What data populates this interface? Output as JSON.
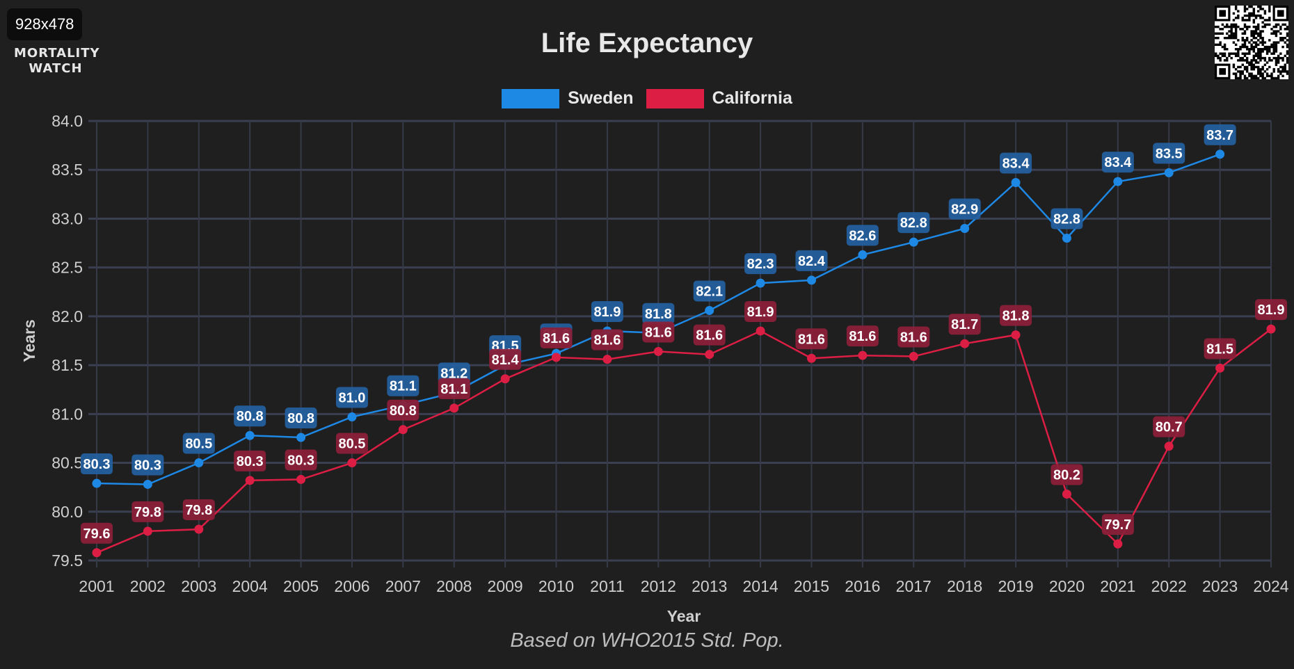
{
  "badge": "928x478",
  "logo": {
    "line1": "MORTALITY",
    "line2": "WATCH"
  },
  "chart_data": {
    "type": "line",
    "title": "Life Expectancy",
    "subtitle": "Based on WHO2015 Std. Pop.",
    "xlabel": "Year",
    "ylabel": "Years",
    "ylim": [
      79.5,
      84.0
    ],
    "yticks": [
      "84.0",
      "83.5",
      "83.0",
      "82.5",
      "82.0",
      "81.5",
      "81.0",
      "80.5",
      "80.0",
      "79.5"
    ],
    "ytick_values": [
      84.0,
      83.5,
      83.0,
      82.5,
      82.0,
      81.5,
      81.0,
      80.5,
      80.0,
      79.5
    ],
    "x": [
      "2001",
      "2002",
      "2003",
      "2004",
      "2005",
      "2006",
      "2007",
      "2008",
      "2009",
      "2010",
      "2011",
      "2012",
      "2013",
      "2014",
      "2015",
      "2016",
      "2017",
      "2018",
      "2019",
      "2020",
      "2021",
      "2022",
      "2023",
      "2024"
    ],
    "grid": true,
    "legend_position": "top-center",
    "series": [
      {
        "name": "Sweden",
        "color": "#1e88e5",
        "label_bg": "#245f9e",
        "values": [
          80.29,
          80.28,
          80.5,
          80.78,
          80.76,
          80.97,
          81.09,
          81.22,
          81.5,
          81.62,
          81.85,
          81.83,
          82.06,
          82.34,
          82.37,
          82.63,
          82.76,
          82.9,
          83.37,
          82.8,
          83.38,
          83.47,
          83.66,
          null
        ],
        "labels": [
          "80.3",
          "80.3",
          "80.5",
          "80.8",
          "80.8",
          "81.0",
          "81.1",
          "81.2",
          "81.5",
          "81.6",
          "81.9",
          "81.8",
          "82.1",
          "82.3",
          "82.4",
          "82.6",
          "82.8",
          "82.9",
          "83.4",
          "82.8",
          "83.4",
          "83.5",
          "83.7",
          ""
        ]
      },
      {
        "name": "California",
        "color": "#dc1e44",
        "label_bg": "#8b2039",
        "values": [
          79.58,
          79.8,
          79.82,
          80.32,
          80.33,
          80.5,
          80.84,
          81.06,
          81.36,
          81.58,
          81.56,
          81.64,
          81.61,
          81.85,
          81.57,
          81.6,
          81.59,
          81.72,
          81.81,
          80.18,
          79.67,
          80.67,
          81.47,
          81.87
        ],
        "labels": [
          "79.6",
          "79.8",
          "79.8",
          "80.3",
          "80.3",
          "80.5",
          "80.8",
          "81.1",
          "81.4",
          "81.6",
          "81.6",
          "81.6",
          "81.6",
          "81.9",
          "81.6",
          "81.6",
          "81.6",
          "81.7",
          "81.8",
          "80.2",
          "79.7",
          "80.7",
          "81.5",
          "81.9"
        ]
      }
    ]
  }
}
